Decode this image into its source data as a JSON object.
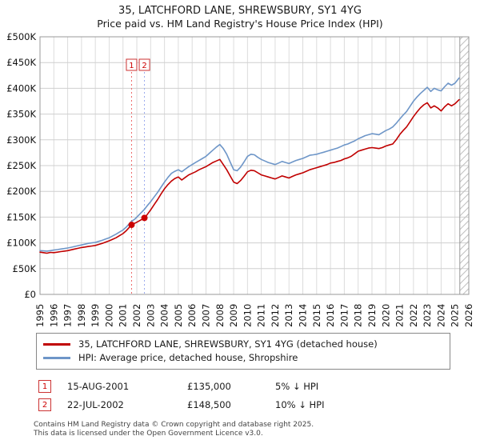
{
  "page": {
    "title": "35, LATCHFORD LANE, SHREWSBURY, SY1 4YG",
    "subtitle": "Price paid vs. HM Land Registry's House Price Index (HPI)"
  },
  "chart_data": {
    "type": "line",
    "title": "35, LATCHFORD LANE, SHREWSBURY, SY1 4YG — Price paid vs. HPI",
    "xlim": [
      1995,
      2026
    ],
    "ylim": [
      0,
      500000
    ],
    "grid": true,
    "x_ticks": [
      1995,
      1996,
      1997,
      1998,
      1999,
      2000,
      2001,
      2002,
      2003,
      2004,
      2005,
      2006,
      2007,
      2008,
      2009,
      2010,
      2011,
      2012,
      2013,
      2014,
      2015,
      2016,
      2017,
      2018,
      2019,
      2020,
      2021,
      2022,
      2023,
      2024,
      2025,
      2026
    ],
    "y_ticks": [
      0,
      50000,
      100000,
      150000,
      200000,
      250000,
      300000,
      350000,
      400000,
      450000,
      500000
    ],
    "y_tick_labels": [
      "£0",
      "£50K",
      "£100K",
      "£150K",
      "£200K",
      "£250K",
      "£300K",
      "£350K",
      "£400K",
      "£450K",
      "£500K"
    ],
    "hatch_future_start": 2025.35,
    "series": [
      {
        "name": "35, LATCHFORD LANE, SHREWSBURY, SY1 4YG (detached house)",
        "color": "#c00000",
        "points": [
          [
            1995.0,
            82000
          ],
          [
            1995.25,
            81000
          ],
          [
            1995.5,
            80000
          ],
          [
            1995.75,
            81500
          ],
          [
            1996.0,
            81000
          ],
          [
            1996.25,
            82000
          ],
          [
            1996.5,
            83000
          ],
          [
            1996.75,
            84000
          ],
          [
            1997.0,
            85000
          ],
          [
            1997.25,
            86500
          ],
          [
            1997.5,
            88000
          ],
          [
            1997.75,
            89500
          ],
          [
            1998.0,
            91000
          ],
          [
            1998.25,
            92000
          ],
          [
            1998.5,
            93000
          ],
          [
            1998.75,
            94000
          ],
          [
            1999.0,
            95000
          ],
          [
            1999.25,
            97000
          ],
          [
            1999.5,
            99000
          ],
          [
            1999.75,
            101500
          ],
          [
            2000.0,
            104000
          ],
          [
            2000.25,
            107000
          ],
          [
            2000.5,
            110000
          ],
          [
            2000.75,
            114000
          ],
          [
            2001.0,
            118000
          ],
          [
            2001.25,
            124000
          ],
          [
            2001.62,
            135000
          ],
          [
            2001.85,
            138000
          ],
          [
            2002.0,
            140000
          ],
          [
            2002.25,
            144000
          ],
          [
            2002.55,
            148500
          ],
          [
            2002.75,
            155000
          ],
          [
            2003.0,
            164000
          ],
          [
            2003.25,
            174000
          ],
          [
            2003.5,
            184000
          ],
          [
            2003.75,
            195000
          ],
          [
            2004.0,
            205000
          ],
          [
            2004.25,
            213000
          ],
          [
            2004.5,
            220000
          ],
          [
            2004.75,
            225000
          ],
          [
            2005.0,
            228000
          ],
          [
            2005.25,
            222000
          ],
          [
            2005.5,
            227000
          ],
          [
            2005.75,
            232000
          ],
          [
            2006.0,
            235000
          ],
          [
            2006.25,
            238000
          ],
          [
            2006.5,
            242000
          ],
          [
            2006.75,
            245000
          ],
          [
            2007.0,
            248000
          ],
          [
            2007.25,
            252000
          ],
          [
            2007.5,
            256000
          ],
          [
            2007.75,
            259000
          ],
          [
            2008.0,
            262000
          ],
          [
            2008.25,
            252000
          ],
          [
            2008.5,
            242000
          ],
          [
            2008.75,
            230000
          ],
          [
            2009.0,
            218000
          ],
          [
            2009.25,
            215000
          ],
          [
            2009.5,
            221000
          ],
          [
            2009.75,
            229000
          ],
          [
            2010.0,
            238000
          ],
          [
            2010.25,
            241000
          ],
          [
            2010.5,
            240000
          ],
          [
            2010.75,
            236000
          ],
          [
            2011.0,
            232000
          ],
          [
            2011.25,
            230000
          ],
          [
            2011.5,
            228000
          ],
          [
            2011.75,
            226000
          ],
          [
            2012.0,
            224000
          ],
          [
            2012.25,
            227000
          ],
          [
            2012.5,
            230000
          ],
          [
            2012.75,
            228000
          ],
          [
            2013.0,
            226000
          ],
          [
            2013.25,
            229000
          ],
          [
            2013.5,
            232000
          ],
          [
            2013.75,
            234000
          ],
          [
            2014.0,
            236000
          ],
          [
            2014.25,
            239000
          ],
          [
            2014.5,
            242000
          ],
          [
            2014.75,
            244000
          ],
          [
            2015.0,
            246000
          ],
          [
            2015.25,
            248000
          ],
          [
            2015.5,
            250000
          ],
          [
            2015.75,
            252000
          ],
          [
            2016.0,
            255000
          ],
          [
            2016.25,
            256000
          ],
          [
            2016.5,
            258000
          ],
          [
            2016.75,
            260000
          ],
          [
            2017.0,
            263000
          ],
          [
            2017.25,
            265000
          ],
          [
            2017.5,
            268000
          ],
          [
            2017.75,
            273000
          ],
          [
            2018.0,
            278000
          ],
          [
            2018.25,
            280000
          ],
          [
            2018.5,
            282000
          ],
          [
            2018.75,
            284000
          ],
          [
            2019.0,
            285000
          ],
          [
            2019.25,
            284000
          ],
          [
            2019.5,
            283000
          ],
          [
            2019.75,
            285000
          ],
          [
            2020.0,
            288000
          ],
          [
            2020.25,
            290000
          ],
          [
            2020.5,
            292000
          ],
          [
            2020.75,
            300000
          ],
          [
            2021.0,
            310000
          ],
          [
            2021.25,
            318000
          ],
          [
            2021.5,
            325000
          ],
          [
            2021.75,
            335000
          ],
          [
            2022.0,
            345000
          ],
          [
            2022.25,
            354000
          ],
          [
            2022.5,
            362000
          ],
          [
            2022.75,
            368000
          ],
          [
            2023.0,
            372000
          ],
          [
            2023.25,
            362000
          ],
          [
            2023.5,
            366000
          ],
          [
            2023.75,
            362000
          ],
          [
            2024.0,
            356000
          ],
          [
            2024.25,
            364000
          ],
          [
            2024.5,
            370000
          ],
          [
            2024.75,
            366000
          ],
          [
            2025.0,
            370000
          ],
          [
            2025.3,
            378000
          ]
        ]
      },
      {
        "name": "HPI: Average price, detached house, Shropshire",
        "color": "#6e96c8",
        "points": [
          [
            1995.0,
            85000
          ],
          [
            1995.25,
            84500
          ],
          [
            1995.5,
            84000
          ],
          [
            1995.75,
            85000
          ],
          [
            1996.0,
            86000
          ],
          [
            1996.25,
            87000
          ],
          [
            1996.5,
            88000
          ],
          [
            1996.75,
            89000
          ],
          [
            1997.0,
            90000
          ],
          [
            1997.25,
            91500
          ],
          [
            1997.5,
            93000
          ],
          [
            1997.75,
            94500
          ],
          [
            1998.0,
            96000
          ],
          [
            1998.25,
            97500
          ],
          [
            1998.5,
            99000
          ],
          [
            1998.75,
            100000
          ],
          [
            1999.0,
            101000
          ],
          [
            1999.25,
            103000
          ],
          [
            1999.5,
            105000
          ],
          [
            1999.75,
            107500
          ],
          [
            2000.0,
            110000
          ],
          [
            2000.25,
            113500
          ],
          [
            2000.5,
            117000
          ],
          [
            2000.75,
            121000
          ],
          [
            2001.0,
            125000
          ],
          [
            2001.25,
            131000
          ],
          [
            2001.62,
            142000
          ],
          [
            2001.85,
            146000
          ],
          [
            2002.0,
            150000
          ],
          [
            2002.25,
            157000
          ],
          [
            2002.55,
            165000
          ],
          [
            2002.75,
            172000
          ],
          [
            2003.0,
            180000
          ],
          [
            2003.25,
            189000
          ],
          [
            2003.5,
            198000
          ],
          [
            2003.75,
            208000
          ],
          [
            2004.0,
            218000
          ],
          [
            2004.25,
            227000
          ],
          [
            2004.5,
            235000
          ],
          [
            2004.75,
            239000
          ],
          [
            2005.0,
            242000
          ],
          [
            2005.25,
            238000
          ],
          [
            2005.5,
            243000
          ],
          [
            2005.75,
            248000
          ],
          [
            2006.0,
            252000
          ],
          [
            2006.25,
            256000
          ],
          [
            2006.5,
            260000
          ],
          [
            2006.75,
            264000
          ],
          [
            2007.0,
            268000
          ],
          [
            2007.25,
            274000
          ],
          [
            2007.5,
            280000
          ],
          [
            2007.75,
            286000
          ],
          [
            2008.0,
            291000
          ],
          [
            2008.25,
            283000
          ],
          [
            2008.5,
            272000
          ],
          [
            2008.75,
            257000
          ],
          [
            2009.0,
            242000
          ],
          [
            2009.25,
            240000
          ],
          [
            2009.5,
            247000
          ],
          [
            2009.75,
            257000
          ],
          [
            2010.0,
            268000
          ],
          [
            2010.25,
            272000
          ],
          [
            2010.5,
            271000
          ],
          [
            2010.75,
            266000
          ],
          [
            2011.0,
            262000
          ],
          [
            2011.25,
            259000
          ],
          [
            2011.5,
            256000
          ],
          [
            2011.75,
            254000
          ],
          [
            2012.0,
            252000
          ],
          [
            2012.25,
            255000
          ],
          [
            2012.5,
            258000
          ],
          [
            2012.75,
            256000
          ],
          [
            2013.0,
            254000
          ],
          [
            2013.25,
            257000
          ],
          [
            2013.5,
            260000
          ],
          [
            2013.75,
            262000
          ],
          [
            2014.0,
            264000
          ],
          [
            2014.25,
            267000
          ],
          [
            2014.5,
            270000
          ],
          [
            2014.75,
            271000
          ],
          [
            2015.0,
            272000
          ],
          [
            2015.25,
            274000
          ],
          [
            2015.5,
            276000
          ],
          [
            2015.75,
            278000
          ],
          [
            2016.0,
            280000
          ],
          [
            2016.25,
            282000
          ],
          [
            2016.5,
            284000
          ],
          [
            2016.75,
            287000
          ],
          [
            2017.0,
            290000
          ],
          [
            2017.25,
            292000
          ],
          [
            2017.5,
            295000
          ],
          [
            2017.75,
            298000
          ],
          [
            2018.0,
            302000
          ],
          [
            2018.25,
            305000
          ],
          [
            2018.5,
            308000
          ],
          [
            2018.75,
            310000
          ],
          [
            2019.0,
            312000
          ],
          [
            2019.25,
            311000
          ],
          [
            2019.5,
            310000
          ],
          [
            2019.75,
            314000
          ],
          [
            2020.0,
            318000
          ],
          [
            2020.25,
            321000
          ],
          [
            2020.5,
            325000
          ],
          [
            2020.75,
            332000
          ],
          [
            2021.0,
            340000
          ],
          [
            2021.25,
            348000
          ],
          [
            2021.5,
            355000
          ],
          [
            2021.75,
            365000
          ],
          [
            2022.0,
            375000
          ],
          [
            2022.25,
            383000
          ],
          [
            2022.5,
            390000
          ],
          [
            2022.75,
            396000
          ],
          [
            2023.0,
            402000
          ],
          [
            2023.25,
            394000
          ],
          [
            2023.5,
            400000
          ],
          [
            2023.75,
            397000
          ],
          [
            2024.0,
            395000
          ],
          [
            2024.25,
            403000
          ],
          [
            2024.5,
            410000
          ],
          [
            2024.75,
            406000
          ],
          [
            2025.0,
            410000
          ],
          [
            2025.3,
            420000
          ]
        ]
      }
    ],
    "sales": [
      {
        "label": "1",
        "x": 2001.62,
        "y": 135000,
        "marker_color": "#cc0000",
        "line_color": "#ee6666"
      },
      {
        "label": "2",
        "x": 2002.55,
        "y": 148500,
        "marker_color": "#cc0000",
        "line_color": "#99aaee"
      }
    ]
  },
  "legend": {
    "items": [
      {
        "label": "35, LATCHFORD LANE, SHREWSBURY, SY1 4YG (detached house)",
        "color": "#c00000"
      },
      {
        "label": "HPI: Average price, detached house, Shropshire",
        "color": "#6e96c8"
      }
    ]
  },
  "transactions": [
    {
      "num": "1",
      "date": "15-AUG-2001",
      "price": "£135,000",
      "vs_hpi": "5% ↓ HPI"
    },
    {
      "num": "2",
      "date": "22-JUL-2002",
      "price": "£148,500",
      "vs_hpi": "10% ↓ HPI"
    }
  ],
  "footer": {
    "line1": "Contains HM Land Registry data © Crown copyright and database right 2025.",
    "line2": "This data is licensed under the Open Government Licence v3.0."
  }
}
